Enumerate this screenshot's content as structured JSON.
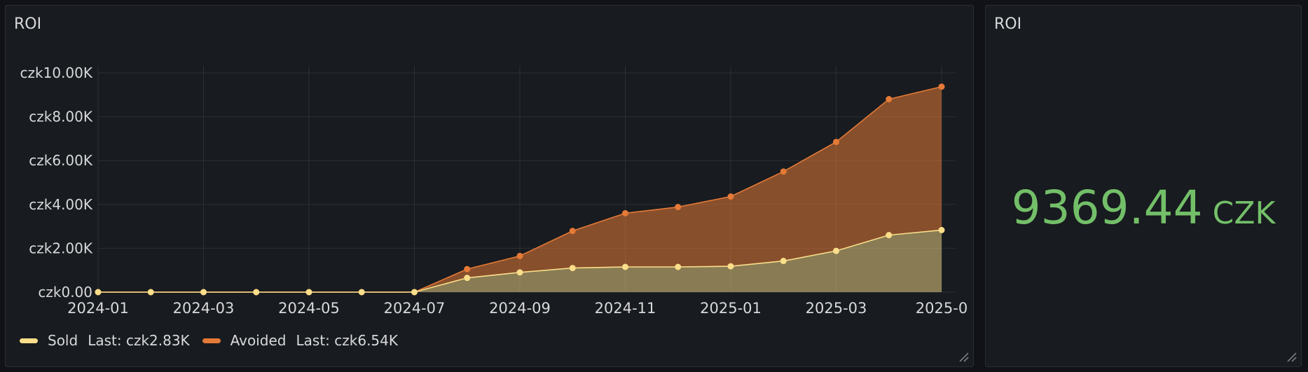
{
  "chart_panel": {
    "title": "ROI"
  },
  "stat_panel": {
    "title": "ROI",
    "value": "9369.44",
    "unit": "CZK",
    "color": "#73bf69"
  },
  "legend": [
    {
      "name": "Sold",
      "last": "Last: czk2.83K",
      "color": "#fade8a"
    },
    {
      "name": "Avoided",
      "last": "Last: czk6.54K",
      "color": "#e57a37"
    }
  ],
  "chart_data": {
    "type": "area",
    "stacked": true,
    "x": [
      "2024-01",
      "2024-02",
      "2024-03",
      "2024-04",
      "2024-05",
      "2024-06",
      "2024-07",
      "2024-08",
      "2024-09",
      "2024-10",
      "2024-11",
      "2024-12",
      "2025-01",
      "2025-02",
      "2025-03",
      "2025-04",
      "2025-05"
    ],
    "x_tick_labels": [
      "2024-01",
      "2024-03",
      "2024-05",
      "2024-07",
      "2024-09",
      "2024-11",
      "2025-01",
      "2025-03",
      "2025-0"
    ],
    "y_tick_labels": [
      "czk0.00",
      "czk2.00K",
      "czk4.00K",
      "czk6.00K",
      "czk8.00K",
      "czk10.00K"
    ],
    "ylim": [
      0,
      10000
    ],
    "grid": true,
    "legend_position": "bottom-left",
    "series": [
      {
        "name": "Sold",
        "color": "#fade8a",
        "values": [
          0,
          0,
          0,
          0,
          0,
          0,
          0,
          650,
          900,
          1100,
          1150,
          1150,
          1180,
          1420,
          1880,
          2600,
          2830
        ]
      },
      {
        "name": "Avoided",
        "color": "#e57a37",
        "values": [
          0,
          0,
          0,
          0,
          0,
          0,
          0,
          400,
          750,
          1690,
          2450,
          2730,
          3180,
          4080,
          4970,
          6200,
          6540
        ]
      }
    ]
  }
}
